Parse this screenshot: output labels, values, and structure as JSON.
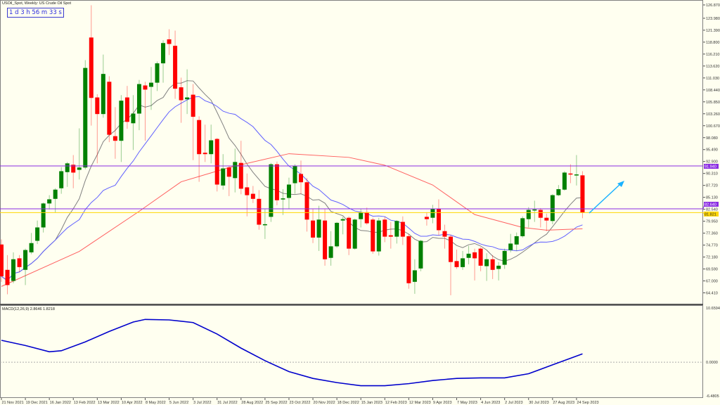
{
  "header": {
    "title": "USOil_Spot, Weekly:  US Crude Oil Spot",
    "timer": "1 d 3 h 56 m 33 s"
  },
  "macd_panel": {
    "label": "MACD(12,26,9) 2.8646 1.8218"
  },
  "colors": {
    "background": "#fffff0",
    "bull": "#008000",
    "bear": "#ff0000",
    "ma_fast": "#808080",
    "ma_mid": "#6060ff",
    "ma_slow": "#ff6060",
    "hline_purple": "#8a2be2",
    "hline_bid": "#ffd700",
    "arrow": "#1ab2ff",
    "macd": "#0000cc"
  },
  "chart_data": [
    {
      "type": "candlestick",
      "title": "USOil_Spot, Weekly:  US Crude Oil Spot",
      "ylim": [
        64.41,
        126.87
      ],
      "y_ticks": [
        "126.870",
        "123.980",
        "121.390",
        "118.800",
        "116.210",
        "113.620",
        "111.030",
        "108.440",
        "105.850",
        "103.260",
        "100.670",
        "98.080",
        "95.490",
        "92.900",
        "90.310",
        "87.720",
        "85.130",
        "82.540",
        "79.950",
        "77.360",
        "74.770",
        "72.180",
        "69.590",
        "67.000",
        "64.410"
      ],
      "x_ticks": [
        {
          "index": 0,
          "label": "21 Nov 2021"
        },
        {
          "index": 4,
          "label": "19 Dec 2021"
        },
        {
          "index": 8,
          "label": "16 Jan 2022"
        },
        {
          "index": 12,
          "label": "13 Feb 2022"
        },
        {
          "index": 16,
          "label": "13 Mar 2022"
        },
        {
          "index": 20,
          "label": "10 Apr 2022"
        },
        {
          "index": 24,
          "label": "8 May 2022"
        },
        {
          "index": 28,
          "label": "5 Jun 2022"
        },
        {
          "index": 32,
          "label": "3 Jul 2022"
        },
        {
          "index": 36,
          "label": "31 Jul 2022"
        },
        {
          "index": 40,
          "label": "28 Aug 2022"
        },
        {
          "index": 44,
          "label": "25 Sep 2022"
        },
        {
          "index": 48,
          "label": "23 Oct 2022"
        },
        {
          "index": 52,
          "label": "20 Nov 2022"
        },
        {
          "index": 56,
          "label": "18 Dec 2022"
        },
        {
          "index": 60,
          "label": "15 Jan 2023"
        },
        {
          "index": 64,
          "label": "12 Feb 2023"
        },
        {
          "index": 68,
          "label": "12 Mar 2023"
        },
        {
          "index": 72,
          "label": "9 Apr 2023"
        },
        {
          "index": 76,
          "label": "7 May 2023"
        },
        {
          "index": 80,
          "label": "4 Jun 2023"
        },
        {
          "index": 84,
          "label": "2 Jul 2023"
        },
        {
          "index": 88,
          "label": "30 Jul 2023"
        },
        {
          "index": 92,
          "label": "27 Aug 2023"
        },
        {
          "index": 96,
          "label": "24 Sep 2023"
        }
      ],
      "ohlc": [
        [
          74.9,
          76.0,
          66.8,
          68.0
        ],
        [
          69.4,
          72.6,
          64.1,
          66.1
        ],
        [
          67.0,
          73.2,
          66.5,
          71.7
        ],
        [
          71.9,
          72.6,
          68.9,
          70.0
        ],
        [
          69.4,
          74.0,
          66.1,
          73.7
        ],
        [
          73.2,
          77.4,
          72.8,
          75.2
        ],
        [
          75.7,
          80.1,
          75.0,
          78.6
        ],
        [
          78.6,
          84.0,
          77.5,
          83.8
        ],
        [
          83.8,
          85.6,
          82.5,
          84.7
        ],
        [
          84.8,
          87.1,
          81.8,
          86.8
        ],
        [
          87.1,
          91.7,
          85.9,
          90.8
        ],
        [
          90.6,
          92.8,
          87.4,
          92.5
        ],
        [
          92.2,
          94.3,
          87.1,
          90.5
        ],
        [
          91.1,
          100.1,
          89.0,
          91.6
        ],
        [
          91.6,
          114.9,
          91.2,
          113.2
        ],
        [
          119.8,
          126.8,
          100.7,
          106.7
        ],
        [
          106.8,
          107.5,
          92.5,
          103.2
        ],
        [
          103.2,
          116.1,
          102.4,
          111.9
        ],
        [
          110.2,
          111.4,
          97.1,
          98.7
        ],
        [
          98.4,
          104.7,
          93.5,
          97.4
        ],
        [
          97.4,
          107.3,
          92.8,
          106.1
        ],
        [
          106.8,
          109.3,
          100.0,
          101.5
        ],
        [
          101.2,
          107.3,
          95.4,
          103.3
        ],
        [
          103.3,
          110.6,
          99.7,
          109.7
        ],
        [
          109.4,
          110.2,
          97.4,
          108.5
        ],
        [
          109.1,
          113.4,
          104.1,
          110.0
        ],
        [
          110.0,
          114.6,
          108.2,
          114.2
        ],
        [
          114.2,
          119.2,
          110.0,
          118.6
        ],
        [
          119.4,
          121.6,
          116.0,
          118.4
        ],
        [
          118.0,
          121.3,
          106.5,
          108.7
        ],
        [
          109.0,
          111.1,
          101.3,
          106.2
        ],
        [
          106.4,
          112.9,
          103.2,
          106.8
        ],
        [
          107.4,
          109.7,
          93.2,
          102.6
        ],
        [
          101.9,
          102.7,
          88.5,
          94.5
        ],
        [
          94.8,
          100.9,
          92.8,
          94.5
        ],
        [
          94.5,
          100.9,
          92.5,
          97.5
        ],
        [
          97.8,
          98.0,
          86.4,
          87.9
        ],
        [
          87.7,
          94.5,
          86.8,
          91.4
        ],
        [
          91.6,
          92.0,
          85.4,
          89.6
        ],
        [
          89.3,
          95.7,
          86.2,
          92.8
        ],
        [
          92.6,
          97.4,
          85.8,
          87.0
        ],
        [
          87.3,
          90.3,
          81.0,
          85.6
        ],
        [
          85.9,
          87.6,
          83.9,
          84.8
        ],
        [
          84.8,
          86.7,
          78.1,
          79.2
        ],
        [
          79.2,
          82.6,
          76.1,
          79.3
        ],
        [
          80.9,
          92.6,
          79.8,
          92.3
        ],
        [
          92.3,
          92.9,
          83.4,
          84.5
        ],
        [
          84.8,
          86.9,
          81.3,
          84.9
        ],
        [
          85.0,
          89.4,
          82.6,
          87.9
        ],
        [
          88.2,
          92.3,
          85.9,
          92.0
        ],
        [
          90.2,
          93.1,
          85.9,
          88.4
        ],
        [
          88.4,
          89.3,
          77.7,
          80.3
        ],
        [
          80.1,
          82.6,
          75.2,
          76.4
        ],
        [
          76.4,
          83.3,
          73.5,
          80.3
        ],
        [
          80.1,
          82.7,
          70.3,
          71.7
        ],
        [
          72.0,
          77.8,
          70.3,
          74.5
        ],
        [
          74.5,
          79.8,
          74.2,
          79.6
        ],
        [
          80.1,
          80.9,
          77.1,
          80.4
        ],
        [
          80.7,
          81.0,
          72.6,
          74.0
        ],
        [
          74.0,
          80.5,
          73.8,
          80.3
        ],
        [
          80.4,
          82.7,
          78.6,
          81.9
        ],
        [
          81.9,
          82.9,
          79.2,
          79.5
        ],
        [
          80.3,
          80.7,
          72.9,
          73.4
        ],
        [
          73.4,
          80.7,
          72.5,
          80.1
        ],
        [
          80.3,
          80.9,
          75.4,
          76.6
        ],
        [
          76.9,
          79.8,
          74.0,
          76.6
        ],
        [
          76.6,
          80.2,
          75.1,
          80.0
        ],
        [
          79.8,
          81.0,
          74.8,
          76.6
        ],
        [
          76.7,
          77.2,
          65.3,
          66.5
        ],
        [
          66.8,
          71.7,
          64.2,
          69.3
        ],
        [
          69.7,
          75.9,
          69.1,
          75.7
        ],
        [
          80.9,
          81.9,
          79.0,
          80.4
        ],
        [
          80.7,
          83.5,
          79.5,
          82.6
        ],
        [
          82.6,
          84.7,
          76.9,
          78.0
        ],
        [
          77.8,
          79.2,
          74.0,
          76.6
        ],
        [
          76.6,
          77.0,
          63.9,
          71.1
        ],
        [
          71.3,
          73.8,
          69.6,
          70.0
        ],
        [
          70.0,
          73.5,
          69.4,
          71.9
        ],
        [
          72.0,
          74.6,
          70.6,
          72.9
        ],
        [
          73.2,
          74.0,
          67.1,
          71.9
        ],
        [
          74.0,
          74.3,
          69.1,
          70.3
        ],
        [
          70.2,
          73.0,
          67.0,
          71.7
        ],
        [
          71.7,
          72.6,
          67.4,
          69.4
        ],
        [
          69.6,
          71.1,
          67.1,
          70.3
        ],
        [
          70.5,
          74.0,
          69.6,
          73.5
        ],
        [
          73.7,
          77.2,
          73.2,
          75.1
        ],
        [
          74.9,
          77.5,
          73.5,
          76.7
        ],
        [
          76.7,
          81.0,
          76.4,
          80.6
        ],
        [
          80.4,
          83.0,
          78.6,
          82.4
        ],
        [
          82.4,
          84.4,
          79.8,
          82.5
        ],
        [
          82.4,
          82.8,
          78.6,
          80.7
        ],
        [
          80.7,
          81.6,
          77.8,
          80.1
        ],
        [
          80.0,
          85.8,
          79.3,
          85.6
        ],
        [
          85.6,
          87.8,
          85.4,
          86.9
        ],
        [
          86.8,
          90.8,
          86.6,
          90.5
        ],
        [
          90.3,
          92.3,
          88.2,
          90.2
        ],
        [
          90.0,
          94.3,
          87.7,
          90.1
        ],
        [
          89.9,
          90.8,
          80.6,
          81.8
        ]
      ],
      "ma_slow_points": [
        [
          0,
          65.8
        ],
        [
          13,
          73.4
        ],
        [
          23,
          82.1
        ],
        [
          30,
          88.5
        ],
        [
          38,
          91.6
        ],
        [
          48,
          94.6
        ],
        [
          58,
          93.8
        ],
        [
          64,
          92.1
        ],
        [
          72,
          87.8
        ],
        [
          79,
          81.4
        ],
        [
          87,
          78.6
        ],
        [
          91,
          78.0
        ],
        [
          97,
          78.3
        ]
      ],
      "hlines": [
        {
          "value": 91.94,
          "label": "91.940",
          "color": "#8a2be2"
        },
        {
          "value": 82.64,
          "label": "82.640",
          "color": "#8a2be2"
        },
        {
          "value": 81.82,
          "label": "81.821",
          "color": "#ffd700"
        }
      ]
    },
    {
      "type": "line",
      "title": "MACD(12,26,9) 2.8646 1.8218",
      "ylim": [
        -6.4805,
        10.6594
      ],
      "y_ticks": [
        "10.6594",
        "0.0000",
        "-6.4805"
      ],
      "points": [
        [
          0,
          4.2
        ],
        [
          4,
          3.2
        ],
        [
          8,
          2.0
        ],
        [
          10,
          2.2
        ],
        [
          14,
          3.9
        ],
        [
          18,
          5.9
        ],
        [
          22,
          7.7
        ],
        [
          24,
          8.2
        ],
        [
          28,
          8.1
        ],
        [
          32,
          7.6
        ],
        [
          36,
          5.4
        ],
        [
          40,
          2.7
        ],
        [
          44,
          0.3
        ],
        [
          48,
          -1.8
        ],
        [
          52,
          -3.1
        ],
        [
          56,
          -3.9
        ],
        [
          60,
          -4.5
        ],
        [
          64,
          -4.5
        ],
        [
          68,
          -4.1
        ],
        [
          72,
          -3.5
        ],
        [
          76,
          -3.1
        ],
        [
          80,
          -3.0
        ],
        [
          84,
          -3.0
        ],
        [
          88,
          -2.2
        ],
        [
          92,
          -0.5
        ],
        [
          97,
          1.6
        ]
      ]
    }
  ]
}
